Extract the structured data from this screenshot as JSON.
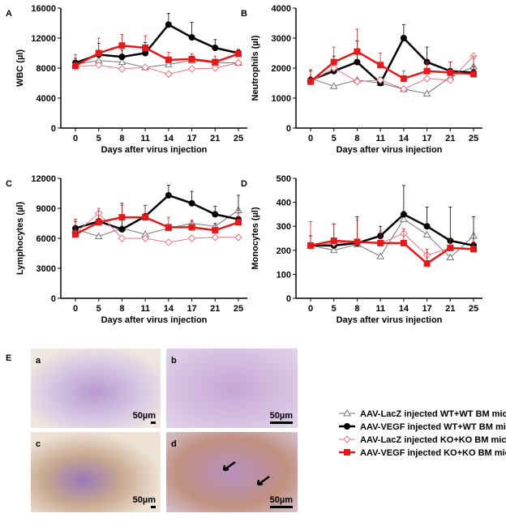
{
  "chart_data": [
    {
      "type": "line",
      "panel": "A",
      "y_label": "WBC (µl)",
      "x_label": "Days after virus injection",
      "categories": [
        "0",
        "5",
        "8",
        "11",
        "14",
        "17",
        "21",
        "25"
      ],
      "ylim": [
        0,
        16000
      ],
      "yticks": [
        0,
        4000,
        8000,
        12000,
        16000
      ],
      "series": [
        {
          "name": "AAV-LacZ injected WT+WT BM mice",
          "color": "#777777",
          "marker": "triangle",
          "filled": false,
          "width": 1,
          "values": [
            8500,
            9000,
            8800,
            8100,
            8500,
            9000,
            8700,
            8700
          ]
        },
        {
          "name": "AAV-VEGF injected WT+WT BM mice",
          "color": "#000000",
          "marker": "circle",
          "filled": true,
          "width": 2.5,
          "values": [
            8700,
            9800,
            9500,
            10000,
            13800,
            12100,
            10700,
            10000
          ],
          "errors": [
            600,
            1500,
            900,
            1400,
            1500,
            2000,
            1100,
            400
          ]
        },
        {
          "name": "AAV-LacZ injected KO+KO BM mice",
          "color": "#f07080",
          "marker": "diamond",
          "filled": false,
          "width": 1,
          "values": [
            8200,
            8400,
            7900,
            8100,
            7200,
            7900,
            8000,
            8700
          ]
        },
        {
          "name": "AAV-VEGF injected KO+KO BM mice",
          "color": "#e31a1c",
          "marker": "square",
          "filled": true,
          "width": 2.5,
          "values": [
            8300,
            10000,
            11000,
            10700,
            9100,
            9200,
            8800,
            9900
          ],
          "errors": [
            1500,
            2000,
            1500,
            1600,
            1000,
            700,
            800,
            600
          ]
        }
      ]
    },
    {
      "type": "line",
      "panel": "B",
      "y_label": "Neutrophils (µl)",
      "x_label": "Days after virus injection",
      "categories": [
        "0",
        "5",
        "8",
        "11",
        "14",
        "17",
        "21",
        "25"
      ],
      "ylim": [
        0,
        4000
      ],
      "yticks": [
        0,
        1000,
        2000,
        3000,
        4000
      ],
      "series": [
        {
          "color": "#777777",
          "marker": "triangle",
          "filled": false,
          "width": 1,
          "values": [
            1650,
            1400,
            1600,
            1500,
            1300,
            1150,
            1700,
            2050
          ]
        },
        {
          "color": "#000000",
          "marker": "circle",
          "filled": true,
          "width": 2.5,
          "values": [
            1600,
            1900,
            2200,
            1500,
            3000,
            2200,
            1900,
            1850
          ],
          "errors": [
            300,
            500,
            700,
            200,
            450,
            500,
            300,
            200
          ]
        },
        {
          "color": "#f07080",
          "marker": "diamond",
          "filled": false,
          "width": 1,
          "values": [
            1550,
            2000,
            1550,
            1600,
            1300,
            1650,
            1600,
            2400
          ]
        },
        {
          "color": "#e31a1c",
          "marker": "square",
          "filled": true,
          "width": 2.5,
          "values": [
            1550,
            2200,
            2550,
            2100,
            1650,
            1900,
            1850,
            1800
          ],
          "errors": [
            400,
            500,
            750,
            400,
            250,
            300,
            350,
            600
          ]
        }
      ]
    },
    {
      "type": "line",
      "panel": "C",
      "y_label": "Lymphocytes (µl)",
      "x_label": "Days after virus injection",
      "categories": [
        "0",
        "5",
        "8",
        "11",
        "14",
        "17",
        "21",
        "25"
      ],
      "ylim": [
        0,
        12000
      ],
      "yticks": [
        0,
        3000,
        6000,
        9000,
        12000
      ],
      "series": [
        {
          "color": "#777777",
          "marker": "triangle",
          "filled": false,
          "width": 1,
          "values": [
            6900,
            6200,
            7000,
            6400,
            7000,
            7500,
            7200,
            8800
          ]
        },
        {
          "color": "#000000",
          "marker": "circle",
          "filled": true,
          "width": 2.5,
          "values": [
            7000,
            7700,
            6900,
            8200,
            10300,
            9500,
            8400,
            7900
          ],
          "errors": [
            700,
            1000,
            2600,
            1100,
            1000,
            1200,
            800,
            2400
          ]
        },
        {
          "color": "#f07080",
          "marker": "diamond",
          "filled": false,
          "width": 1,
          "values": [
            6500,
            8500,
            6000,
            6000,
            5600,
            6000,
            6100,
            6100
          ]
        },
        {
          "color": "#e31a1c",
          "marker": "square",
          "filled": true,
          "width": 2.5,
          "values": [
            6400,
            7600,
            8100,
            8100,
            7100,
            7100,
            6800,
            7600
          ],
          "errors": [
            1500,
            1400,
            1200,
            1200,
            1000,
            700,
            700,
            1200
          ]
        }
      ]
    },
    {
      "type": "line",
      "panel": "D",
      "y_label": "Monocytes (µl)",
      "x_label": "Days after virus injection",
      "categories": [
        "0",
        "5",
        "8",
        "11",
        "14",
        "17",
        "21",
        "25"
      ],
      "ylim": [
        0,
        500
      ],
      "yticks": [
        0,
        100,
        200,
        300,
        400,
        500
      ],
      "series": [
        {
          "color": "#777777",
          "marker": "triangle",
          "filled": false,
          "width": 1,
          "values": [
            220,
            200,
            225,
            175,
            330,
            265,
            170,
            260
          ]
        },
        {
          "color": "#000000",
          "marker": "circle",
          "filled": true,
          "width": 2.5,
          "values": [
            220,
            220,
            230,
            260,
            350,
            300,
            240,
            220
          ],
          "errors": [
            40,
            90,
            110,
            40,
            120,
            80,
            140,
            120
          ]
        },
        {
          "color": "#f07080",
          "marker": "diamond",
          "filled": false,
          "width": 1,
          "values": [
            220,
            230,
            235,
            230,
            270,
            180,
            210,
            205
          ]
        },
        {
          "color": "#e31a1c",
          "marker": "square",
          "filled": true,
          "width": 2.5,
          "values": [
            220,
            240,
            235,
            230,
            230,
            145,
            210,
            205
          ],
          "errors": [
            100,
            70,
            90,
            50,
            60,
            60,
            40,
            30
          ]
        }
      ]
    }
  ],
  "panel_e": {
    "label": "E",
    "images": [
      {
        "label": "a",
        "scale": "50µm"
      },
      {
        "label": "b",
        "scale": "50µm"
      },
      {
        "label": "c",
        "scale": "50µm"
      },
      {
        "label": "d",
        "scale": "50µm"
      }
    ]
  }
}
